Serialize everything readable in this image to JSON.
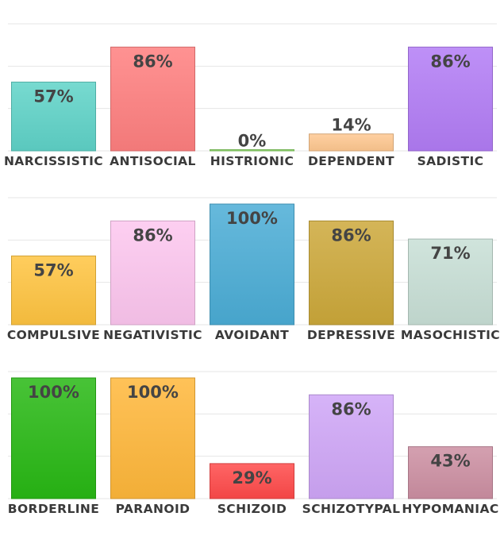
{
  "chart_data": [
    {
      "type": "bar",
      "categories": [
        "NARCISSISTIC",
        "ANTISOCIAL",
        "HISTRIONIC",
        "DEPENDENT",
        "SADISTIC"
      ],
      "values": [
        57,
        86,
        0,
        14,
        86
      ],
      "value_labels": [
        "57%",
        "86%",
        "0%",
        "14%",
        "86%"
      ],
      "colors": [
        "#5fd3c8",
        "#ff7f7f",
        "#8fdc6a",
        "#ffc890",
        "#b27cf5"
      ],
      "ylim": [
        0,
        100
      ],
      "grid": true
    },
    {
      "type": "bar",
      "categories": [
        "COMPULSIVE",
        "NEGATIVISTIC",
        "AVOIDANT",
        "DEPRESSIVE",
        "MASOCHISTIC"
      ],
      "values": [
        57,
        86,
        100,
        86,
        71
      ],
      "value_labels": [
        "57%",
        "86%",
        "100%",
        "86%",
        "71%"
      ],
      "colors": [
        "#ffc440",
        "#fdc6ef",
        "#4badd6",
        "#cca83a",
        "#c8dfd6"
      ],
      "ylim": [
        0,
        100
      ],
      "grid": true
    },
    {
      "type": "bar",
      "categories": [
        "BORDERLINE",
        "PARANOID",
        "SCHIZOID",
        "SCHIZOTYPAL",
        "HYPOMANIAC"
      ],
      "values": [
        100,
        100,
        29,
        86,
        43
      ],
      "value_labels": [
        "100%",
        "100%",
        "29%",
        "86%",
        "43%"
      ],
      "colors": [
        "#28b814",
        "#ffb73a",
        "#ff4a4a",
        "#cfa6f7",
        "#cc8fa2"
      ],
      "ylim": [
        0,
        100
      ],
      "grid": true
    }
  ]
}
